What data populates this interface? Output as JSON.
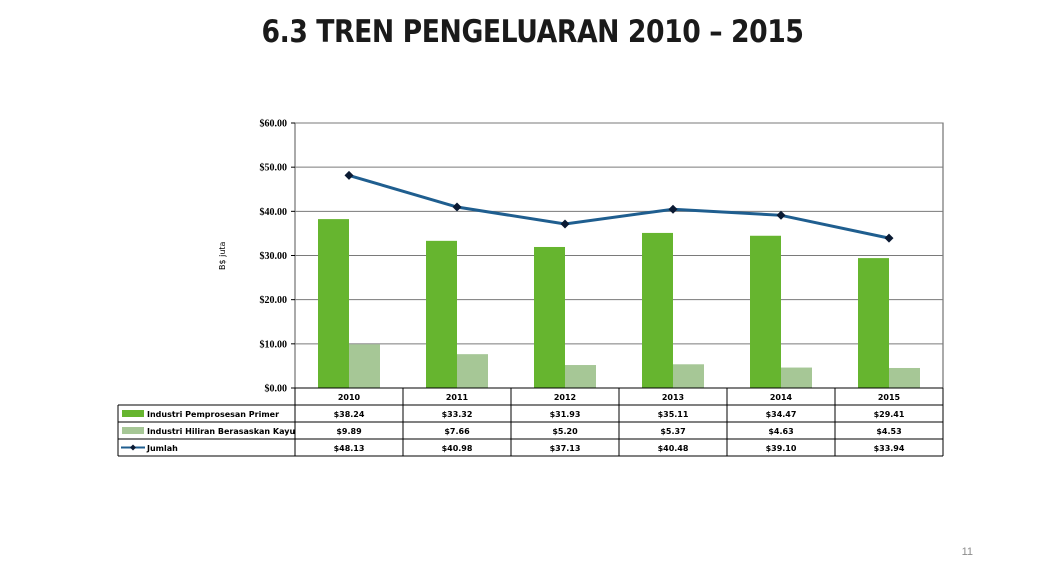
{
  "title": "6.3 TREN PENGELUARAN 2010 – 2015",
  "page_number": "11",
  "colors": {
    "primary_bar": "#66b52f",
    "hiliran_bar": "#a6c796",
    "total_line": "#1f5e8f",
    "marker": "#0a1a33",
    "grid": "#7a7a7a"
  },
  "chart_data": {
    "type": "bar",
    "categories": [
      "2010",
      "2011",
      "2012",
      "2013",
      "2014",
      "2015"
    ],
    "series": [
      {
        "name": "Industri Pemprosesan Primer",
        "type": "bar",
        "values": [
          38.24,
          33.32,
          31.93,
          35.11,
          34.47,
          29.41
        ],
        "labels": [
          "$38.24",
          "$33.32",
          "$31.93",
          "$35.11",
          "$34.47",
          "$29.41"
        ]
      },
      {
        "name": "Industri Hiliran Berasaskan Kayu",
        "type": "bar",
        "values": [
          9.89,
          7.66,
          5.2,
          5.37,
          4.63,
          4.53
        ],
        "labels": [
          "$9.89",
          "$7.66",
          "$5.20",
          "$5.37",
          "$4.63",
          "$4.53"
        ]
      },
      {
        "name": "Jumlah",
        "type": "line",
        "values": [
          48.13,
          40.98,
          37.13,
          40.48,
          39.1,
          33.94
        ],
        "labels": [
          "$48.13",
          "$40.98",
          "$37.13",
          "$40.48",
          "$39.10",
          "$33.94"
        ]
      }
    ],
    "ylabel": "B$ juta",
    "ylim": [
      0,
      60
    ],
    "yticks": [
      0,
      10,
      20,
      30,
      40,
      50,
      60
    ],
    "ytick_labels": [
      "$0.00",
      "$10.00",
      "$20.00",
      "$30.00",
      "$40.00",
      "$50.00",
      "$60.00"
    ],
    "grid": true,
    "legend": "data-table"
  }
}
